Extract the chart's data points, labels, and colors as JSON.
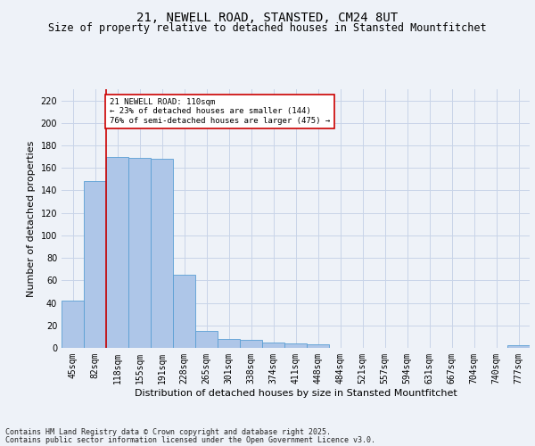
{
  "title": "21, NEWELL ROAD, STANSTED, CM24 8UT",
  "subtitle": "Size of property relative to detached houses in Stansted Mountfitchet",
  "xlabel": "Distribution of detached houses by size in Stansted Mountfitchet",
  "ylabel": "Number of detached properties",
  "categories": [
    "45sqm",
    "82sqm",
    "118sqm",
    "155sqm",
    "191sqm",
    "228sqm",
    "265sqm",
    "301sqm",
    "338sqm",
    "374sqm",
    "411sqm",
    "448sqm",
    "484sqm",
    "521sqm",
    "557sqm",
    "594sqm",
    "631sqm",
    "667sqm",
    "704sqm",
    "740sqm",
    "777sqm"
  ],
  "values": [
    42,
    148,
    170,
    169,
    168,
    65,
    15,
    8,
    7,
    5,
    4,
    3,
    0,
    0,
    0,
    0,
    0,
    0,
    0,
    0,
    2
  ],
  "bar_color": "#aec6e8",
  "bar_edge_color": "#5a9fd4",
  "ylim": [
    0,
    230
  ],
  "yticks": [
    0,
    20,
    40,
    60,
    80,
    100,
    120,
    140,
    160,
    180,
    200,
    220
  ],
  "vline_x": 1.5,
  "vline_color": "#cc0000",
  "annotation_text": "21 NEWELL ROAD: 110sqm\n← 23% of detached houses are smaller (144)\n76% of semi-detached houses are larger (475) →",
  "annotation_box_color": "#cc0000",
  "footer_line1": "Contains HM Land Registry data © Crown copyright and database right 2025.",
  "footer_line2": "Contains public sector information licensed under the Open Government Licence v3.0.",
  "background_color": "#eef2f8",
  "plot_background": "#eef2f8",
  "grid_color": "#c8d4e8",
  "title_fontsize": 10,
  "subtitle_fontsize": 8.5,
  "axis_label_fontsize": 8,
  "tick_fontsize": 7,
  "footer_fontsize": 6
}
